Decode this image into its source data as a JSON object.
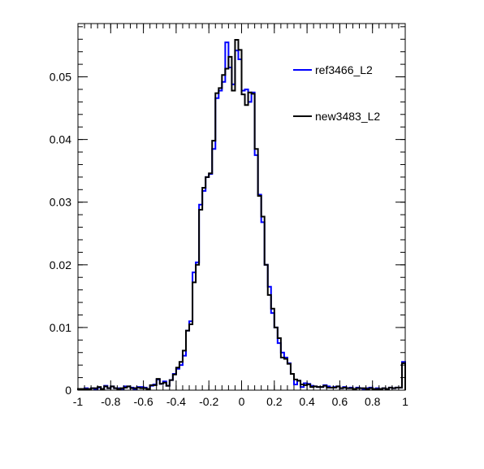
{
  "chart_data": {
    "type": "step",
    "title": "",
    "xlabel": "",
    "ylabel": "",
    "xlim": [
      -1,
      1
    ],
    "ylim": [
      0,
      0.0585
    ],
    "x_ticks": [
      -1,
      -0.8,
      -0.6,
      -0.4,
      -0.2,
      0,
      0.2,
      0.4,
      0.6,
      0.8,
      1
    ],
    "x_tick_labels": [
      "-1",
      "-0.8",
      "-0.6",
      "-0.4",
      "-0.2",
      "0",
      "0.2",
      "0.4",
      "0.6",
      "0.8",
      "1"
    ],
    "y_ticks": [
      0,
      0.01,
      0.02,
      0.03,
      0.04,
      0.05
    ],
    "y_tick_labels": [
      "0",
      "0.01",
      "0.02",
      "0.03",
      "0.04",
      "0.05"
    ],
    "grid": false,
    "legend_position": "top-right",
    "bins": 100,
    "bin_width": 0.02,
    "series": [
      {
        "name": "ref3466_L2",
        "color": "#0000ff",
        "values": [
          0.0002,
          0.0002,
          0.0003,
          0.0001,
          0.0003,
          0.0002,
          0.0004,
          0.0002,
          0.0007,
          0.0003,
          0.0006,
          0.0003,
          0.0003,
          0.0002,
          0.0006,
          0.0006,
          0.0004,
          0.0002,
          0.0005,
          0.0005,
          0.0004,
          0.0002,
          0.0007,
          0.0009,
          0.0017,
          0.001,
          0.0014,
          0.0007,
          0.0016,
          0.0026,
          0.0034,
          0.004,
          0.0055,
          0.0095,
          0.011,
          0.0188,
          0.0204,
          0.0296,
          0.0318,
          0.034,
          0.0345,
          0.0385,
          0.0466,
          0.0478,
          0.0492,
          0.0555,
          0.0515,
          0.0488,
          0.0542,
          0.0528,
          0.0478,
          0.048,
          0.046,
          0.0475,
          0.0375,
          0.0312,
          0.0268,
          0.02,
          0.0165,
          0.0123,
          0.01,
          0.0075,
          0.006,
          0.0052,
          0.0043,
          0.0026,
          0.0009,
          0.0015,
          0.0005,
          0.0011,
          0.001,
          0.0007,
          0.0006,
          0.0005,
          0.0005,
          0.0008,
          0.0006,
          0.0004,
          0.0005,
          0.0006,
          0.0003,
          0.0005,
          0.0003,
          0.0004,
          0.0002,
          0.0004,
          0.0003,
          0.0002,
          0.0003,
          0.0004,
          0.0001,
          0.0003,
          0.0002,
          0.0003,
          0.0002,
          0.0004,
          0.0003,
          0.0004,
          0.0004,
          0.0045
        ]
      },
      {
        "name": "new3483_L2",
        "color": "#000000",
        "values": [
          0.0002,
          0.0002,
          0.0002,
          0.0002,
          0.0003,
          0.0003,
          0.0005,
          0.0002,
          0.0006,
          0.0003,
          0.0006,
          0.0003,
          0.0002,
          0.0003,
          0.0004,
          0.0006,
          0.0003,
          0.0003,
          0.0004,
          0.0003,
          0.0003,
          0.0002,
          0.0008,
          0.0008,
          0.0018,
          0.001,
          0.0012,
          0.0007,
          0.0016,
          0.0025,
          0.0036,
          0.0045,
          0.0063,
          0.0095,
          0.0105,
          0.0172,
          0.02,
          0.0288,
          0.0323,
          0.034,
          0.0346,
          0.0398,
          0.0474,
          0.0482,
          0.0503,
          0.0513,
          0.0532,
          0.0478,
          0.0559,
          0.0543,
          0.0472,
          0.0455,
          0.0475,
          0.0473,
          0.0385,
          0.031,
          0.0277,
          0.02,
          0.0152,
          0.013,
          0.01,
          0.0083,
          0.0052,
          0.005,
          0.0042,
          0.0026,
          0.0017,
          0.0015,
          0.0009,
          0.0008,
          0.0009,
          0.0005,
          0.0006,
          0.0005,
          0.0005,
          0.0007,
          0.0004,
          0.0004,
          0.0004,
          0.0006,
          0.0003,
          0.0004,
          0.0003,
          0.0003,
          0.0002,
          0.0003,
          0.0003,
          0.0003,
          0.0002,
          0.0003,
          0.0002,
          0.0002,
          0.0002,
          0.0003,
          0.0002,
          0.0004,
          0.0003,
          0.0004,
          0.0004,
          0.0043
        ]
      }
    ]
  }
}
